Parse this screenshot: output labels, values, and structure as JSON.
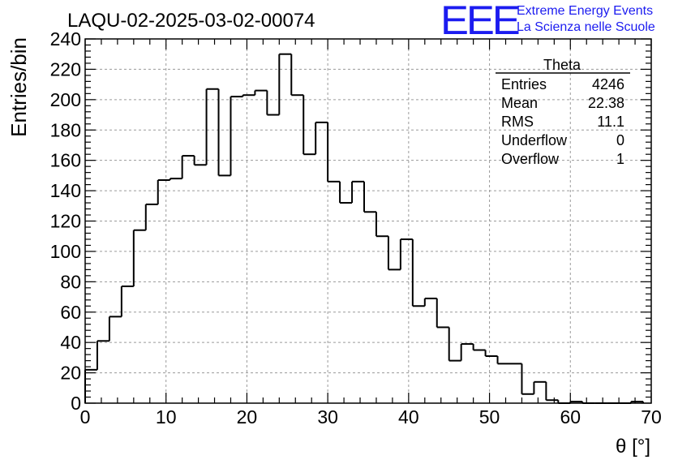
{
  "header": {
    "title": "LAQU-02-2025-03-02-00074",
    "logo": {
      "mark": "EEE",
      "line1": "Extreme Energy Events",
      "line2": "La Scienza nelle Scuole",
      "color": "#1c1cf0"
    }
  },
  "stats_box": {
    "title": "Theta",
    "rows": [
      {
        "label": "Entries",
        "value": "4246"
      },
      {
        "label": "Mean",
        "value": "22.38"
      },
      {
        "label": "RMS",
        "value": "11.1"
      },
      {
        "label": "Underflow",
        "value": "0"
      },
      {
        "label": "Overflow",
        "value": "1"
      }
    ]
  },
  "chart_data": {
    "type": "bar",
    "style": "step-histogram",
    "xlabel": "θ [°]",
    "ylabel": "Entries/bin",
    "xlim": [
      0,
      70
    ],
    "ylim": [
      0,
      240
    ],
    "xticks": [
      0,
      10,
      20,
      30,
      40,
      50,
      60,
      70
    ],
    "yticks": [
      0,
      20,
      40,
      60,
      80,
      100,
      120,
      140,
      160,
      180,
      200,
      220,
      240
    ],
    "grid": true,
    "bin_width": 1.5,
    "bin_edges_start": 0,
    "values": [
      22,
      41,
      57,
      77,
      114,
      131,
      147,
      148,
      163,
      157,
      207,
      150,
      202,
      203,
      206,
      190,
      230,
      203,
      164,
      185,
      146,
      132,
      146,
      126,
      110,
      88,
      108,
      64,
      69,
      50,
      28,
      39,
      35,
      31,
      26,
      26,
      6,
      14,
      2,
      0,
      1,
      0,
      0,
      0,
      0,
      1
    ],
    "line_color": "#000000"
  }
}
